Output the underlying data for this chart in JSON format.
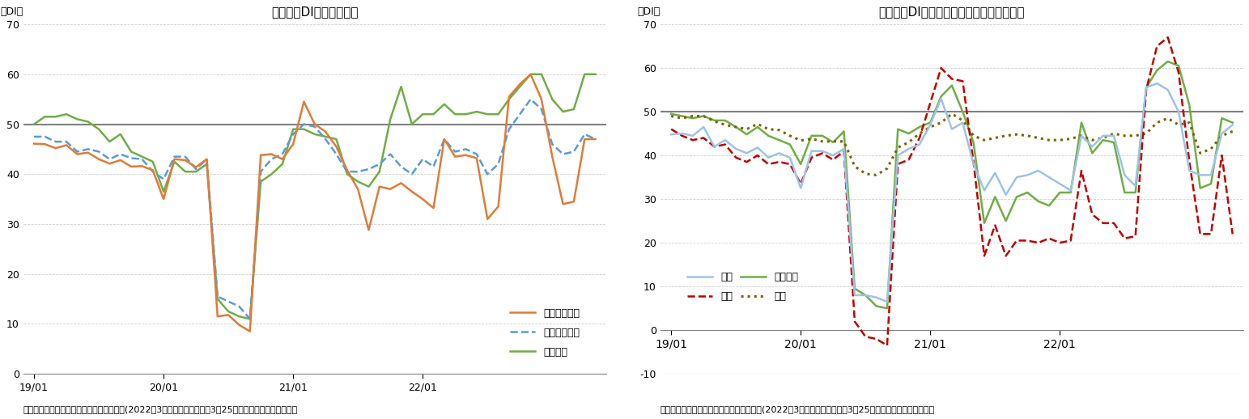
{
  "chart1": {
    "title": "現状判断DIの内訳の推移",
    "caption": "（出所）内閣府「景気ウォッチャー調査」(2022年3月調査、調査期間：3月25日から月末、季節調整値）",
    "series": {
      "kasei": {
        "label": "家計動向関連",
        "color": "#e07b39",
        "linestyle": "solid",
        "values": [
          46.1,
          46.0,
          45.2,
          45.8,
          44.0,
          44.3,
          43.0,
          42.1,
          42.8,
          41.5,
          41.6,
          40.8,
          35.0,
          43.0,
          42.8,
          41.4,
          43.0,
          11.5,
          11.8,
          9.8,
          8.5,
          43.8,
          44.0,
          43.0,
          46.0,
          54.5,
          50.0,
          48.5,
          45.5,
          40.8,
          37.0,
          28.8,
          37.5,
          37.0,
          38.2,
          36.5,
          35.0,
          33.2,
          47.0,
          43.5,
          43.8,
          43.2,
          31.0,
          33.5,
          55.5,
          58.0,
          60.0,
          55.0,
          43.5,
          34.0,
          34.5,
          47.0,
          47.0
        ]
      },
      "kigyo": {
        "label": "企業動向関連",
        "color": "#5b9bd5",
        "linestyle": "dashed",
        "values": [
          47.5,
          47.5,
          46.5,
          46.5,
          44.5,
          45.0,
          44.5,
          43.0,
          44.0,
          43.2,
          43.0,
          40.5,
          39.0,
          43.5,
          43.5,
          41.0,
          43.0,
          15.5,
          14.5,
          13.5,
          11.0,
          40.5,
          43.0,
          44.0,
          48.0,
          50.0,
          49.5,
          47.0,
          44.0,
          40.5,
          40.5,
          41.0,
          42.0,
          44.0,
          41.5,
          40.0,
          43.0,
          41.5,
          47.0,
          44.5,
          45.0,
          44.0,
          40.0,
          42.0,
          49.0,
          52.0,
          55.0,
          53.0,
          46.0,
          44.0,
          44.5,
          48.0,
          47.0
        ]
      },
      "koyo": {
        "label": "雇用関連",
        "color": "#70ad47",
        "linestyle": "solid",
        "values": [
          50.0,
          51.5,
          51.5,
          52.0,
          51.0,
          50.5,
          49.0,
          46.5,
          48.0,
          44.5,
          43.5,
          42.5,
          36.5,
          42.5,
          40.5,
          40.5,
          42.0,
          15.0,
          12.5,
          11.5,
          11.0,
          38.5,
          40.0,
          42.0,
          49.0,
          49.0,
          48.0,
          47.5,
          47.0,
          40.0,
          38.5,
          37.5,
          40.5,
          51.0,
          57.5,
          50.0,
          52.0,
          52.0,
          54.0,
          52.0,
          52.0,
          52.5,
          52.0,
          52.0,
          55.0,
          57.5,
          60.0,
          60.0,
          55.0,
          52.5,
          53.0,
          60.0,
          60.0
        ]
      }
    }
  },
  "chart2": {
    "title": "現状判断DI（家計動向関連）の内訳の推移",
    "caption": "（出所）内閣府「景気ウォッチャー調査」(2022年3月調査、調査期間：3月25日から月末、季節調整値）",
    "series": {
      "kouri": {
        "label": "小売",
        "color": "#9dc3e6",
        "linestyle": "solid",
        "values": [
          44.8,
          45.0,
          44.5,
          46.5,
          42.0,
          43.5,
          41.5,
          40.5,
          41.8,
          39.5,
          40.5,
          39.5,
          32.5,
          41.0,
          41.0,
          40.0,
          41.5,
          8.0,
          8.0,
          7.5,
          6.5,
          40.0,
          41.5,
          42.5,
          47.0,
          53.0,
          46.0,
          47.5,
          38.0,
          32.0,
          36.0,
          31.0,
          35.0,
          35.5,
          36.5,
          35.0,
          33.5,
          32.0,
          44.5,
          42.0,
          44.5,
          44.5,
          35.5,
          33.0,
          55.5,
          56.5,
          55.0,
          50.0,
          36.5,
          35.5,
          35.5,
          45.0,
          47.0
        ]
      },
      "inshoku": {
        "label": "飲食",
        "color": "#c00000",
        "linestyle": "dashed",
        "values": [
          46.0,
          44.5,
          43.5,
          44.0,
          42.0,
          42.5,
          39.5,
          38.5,
          40.0,
          38.0,
          38.5,
          38.0,
          33.5,
          39.5,
          40.5,
          39.0,
          41.0,
          2.0,
          -1.5,
          -2.0,
          -3.5,
          38.0,
          39.0,
          44.0,
          52.0,
          60.0,
          57.5,
          57.0,
          38.5,
          17.0,
          24.0,
          17.0,
          20.5,
          20.5,
          20.0,
          21.0,
          20.0,
          20.5,
          36.5,
          26.5,
          24.5,
          24.5,
          21.0,
          21.5,
          55.0,
          65.0,
          67.0,
          59.0,
          38.5,
          22.0,
          22.0,
          40.0,
          22.0
        ]
      },
      "service": {
        "label": "サービス",
        "color": "#70ad47",
        "linestyle": "solid",
        "values": [
          49.5,
          49.0,
          48.5,
          49.0,
          48.0,
          48.0,
          46.5,
          44.8,
          46.5,
          44.5,
          43.5,
          42.5,
          38.0,
          44.5,
          44.5,
          43.0,
          45.5,
          9.5,
          8.0,
          5.5,
          5.0,
          46.0,
          45.0,
          46.5,
          47.5,
          53.5,
          56.0,
          50.0,
          43.0,
          24.5,
          30.5,
          25.0,
          30.5,
          31.5,
          29.5,
          28.5,
          31.5,
          31.5,
          47.5,
          40.5,
          43.5,
          43.0,
          31.5,
          31.5,
          55.5,
          59.5,
          61.5,
          60.5,
          51.5,
          32.5,
          33.5,
          48.5,
          47.5
        ]
      },
      "jutaku": {
        "label": "住宅",
        "color": "#7f6000",
        "linestyle": "dotted",
        "values": [
          49.0,
          48.5,
          49.0,
          49.0,
          47.8,
          47.0,
          46.5,
          46.0,
          47.2,
          46.0,
          45.8,
          44.5,
          43.4,
          43.8,
          43.2,
          43.2,
          43.2,
          37.5,
          35.8,
          35.5,
          37.0,
          41.8,
          43.0,
          45.0,
          46.5,
          47.5,
          49.5,
          48.0,
          44.5,
          43.5,
          44.0,
          44.5,
          44.8,
          44.5,
          44.0,
          43.5,
          43.5,
          43.8,
          44.5,
          43.5,
          44.0,
          45.0,
          44.5,
          44.5,
          45.0,
          47.5,
          48.5,
          47.0,
          47.5,
          40.5,
          41.5,
          44.5,
          45.5
        ]
      }
    }
  },
  "n_points": 53,
  "x_tick_idx": [
    0,
    12,
    24,
    36,
    48
  ],
  "x_tick_labels": [
    "19/01",
    "20/01",
    "21/01",
    "22/01",
    ""
  ],
  "x_tick_labels_show": [
    "19/01",
    "20/01",
    "21/01",
    "22/01"
  ],
  "x_tick_show_idx": [
    0,
    12,
    24,
    36
  ],
  "background_color": "#ffffff",
  "grid_color": "#d0d0d0",
  "hline_color": "#808080",
  "hline_y": 50,
  "spine_color": "#808080",
  "title_fontsize": 11,
  "tick_fontsize": 9,
  "caption_fontsize": 8,
  "legend_fontsize": 9,
  "linewidth": 1.8,
  "dotted_linewidth": 2.2
}
